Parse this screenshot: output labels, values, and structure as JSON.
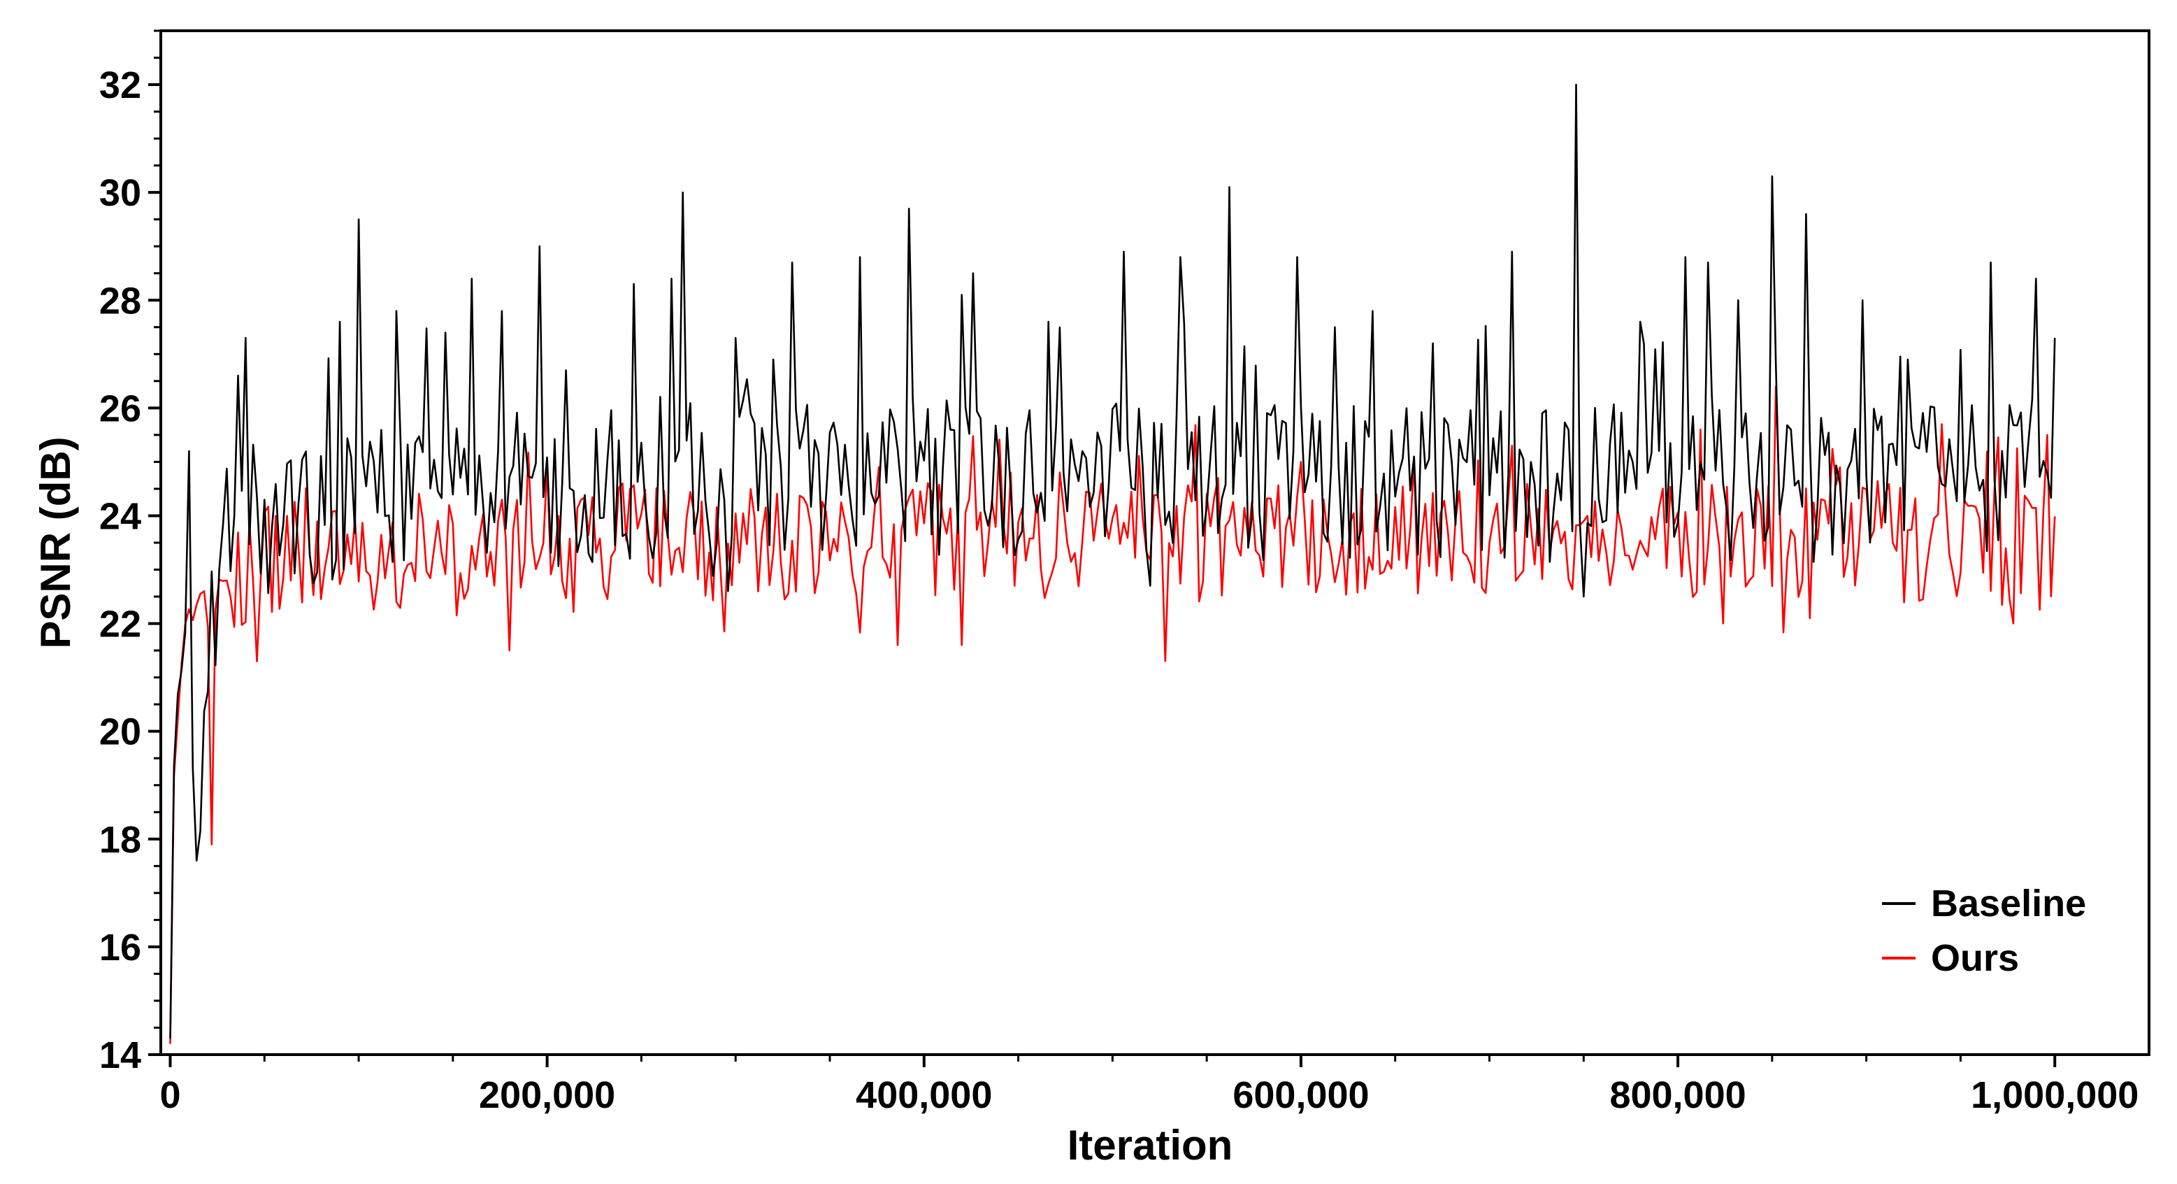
{
  "chart_data": {
    "type": "line",
    "title": "",
    "xlabel": "Iteration",
    "ylabel": "PSNR (dB)",
    "xlim": [
      -5000,
      1050000
    ],
    "ylim": [
      14,
      33
    ],
    "x_ticks": [
      0,
      200000,
      400000,
      600000,
      800000,
      1000000
    ],
    "x_tick_labels": [
      "0",
      "200,000",
      "400,000",
      "600,000",
      "800,000",
      "1,000,000"
    ],
    "y_ticks": [
      14,
      16,
      18,
      20,
      22,
      24,
      26,
      28,
      30,
      32
    ],
    "y_tick_labels": [
      "14",
      "16",
      "18",
      "20",
      "22",
      "24",
      "26",
      "28",
      "30",
      "32"
    ],
    "grid": false,
    "legend_position": "bottom-right",
    "x_range": [
      0,
      1000000
    ],
    "x_step": 2000,
    "series": [
      {
        "name": "Baseline",
        "color": "#000000",
        "anchors": [
          [
            0,
            14.3
          ],
          [
            1500,
            19.0
          ],
          [
            4000,
            20.8
          ],
          [
            8000,
            21.6
          ],
          [
            14000,
            17.6
          ],
          [
            22000,
            22.3
          ],
          [
            30000,
            23.4
          ],
          [
            50000,
            24.0
          ],
          [
            100000,
            24.3
          ],
          [
            200000,
            24.5
          ],
          [
            300000,
            24.7
          ],
          [
            400000,
            24.7
          ],
          [
            500000,
            24.6
          ],
          [
            600000,
            24.6
          ],
          [
            700000,
            24.6
          ],
          [
            800000,
            24.7
          ],
          [
            900000,
            24.6
          ],
          [
            1000000,
            24.8
          ]
        ],
        "amplitude": 1.5,
        "peaks": [
          [
            10000,
            25.2
          ],
          [
            36000,
            26.6
          ],
          [
            40000,
            27.3
          ],
          [
            90000,
            27.6
          ],
          [
            100000,
            29.5
          ],
          [
            120000,
            27.8
          ],
          [
            145000,
            27.4
          ],
          [
            160000,
            28.4
          ],
          [
            175000,
            27.8
          ],
          [
            195000,
            29.0
          ],
          [
            210000,
            26.7
          ],
          [
            245000,
            28.3
          ],
          [
            265000,
            28.4
          ],
          [
            272000,
            30.0
          ],
          [
            300000,
            27.3
          ],
          [
            320000,
            26.9
          ],
          [
            330000,
            28.7
          ],
          [
            365000,
            28.8
          ],
          [
            392000,
            29.7
          ],
          [
            420000,
            28.1
          ],
          [
            425000,
            28.5
          ],
          [
            465000,
            27.6
          ],
          [
            505000,
            28.9
          ],
          [
            535000,
            28.8
          ],
          [
            562000,
            30.1
          ],
          [
            598000,
            28.8
          ],
          [
            618000,
            27.5
          ],
          [
            638000,
            27.8
          ],
          [
            670000,
            27.2
          ],
          [
            712000,
            28.9
          ],
          [
            745000,
            32.0
          ],
          [
            780000,
            27.6
          ],
          [
            803000,
            28.8
          ],
          [
            815000,
            28.7
          ],
          [
            832000,
            28.0
          ],
          [
            850000,
            30.3
          ],
          [
            867000,
            29.6
          ],
          [
            897000,
            28.0
          ],
          [
            922000,
            26.9
          ],
          [
            966000,
            28.7
          ],
          [
            990000,
            28.4
          ],
          [
            1000000,
            27.3
          ]
        ],
        "dips": [
          [
            14000,
            17.6
          ],
          [
            295000,
            22.6
          ],
          [
            520000,
            22.7
          ],
          [
            750000,
            22.5
          ]
        ]
      },
      {
        "name": "Ours",
        "color": "#ff0000",
        "anchors": [
          [
            0,
            14.2
          ],
          [
            1500,
            18.8
          ],
          [
            4000,
            20.3
          ],
          [
            8000,
            21.8
          ],
          [
            15000,
            22.2
          ],
          [
            30000,
            22.6
          ],
          [
            50000,
            23.1
          ],
          [
            100000,
            23.3
          ],
          [
            200000,
            23.4
          ],
          [
            300000,
            23.5
          ],
          [
            400000,
            23.6
          ],
          [
            500000,
            23.5
          ],
          [
            600000,
            23.5
          ],
          [
            700000,
            23.6
          ],
          [
            800000,
            23.6
          ],
          [
            900000,
            23.5
          ],
          [
            1000000,
            23.4
          ]
        ],
        "amplitude": 1.1,
        "peaks": [
          [
            175000,
            24.3
          ],
          [
            240000,
            24.6
          ],
          [
            375000,
            24.9
          ],
          [
            445000,
            24.8
          ],
          [
            555000,
            24.7
          ],
          [
            600000,
            25.0
          ],
          [
            712000,
            25.3
          ],
          [
            812000,
            25.6
          ],
          [
            852000,
            26.4
          ],
          [
            885000,
            24.9
          ],
          [
            940000,
            25.7
          ],
          [
            995000,
            25.5
          ]
        ],
        "dips": [
          [
            22000,
            17.9
          ],
          [
            180000,
            21.5
          ],
          [
            385000,
            21.6
          ],
          [
            420000,
            21.6
          ],
          [
            527000,
            21.3
          ],
          [
            824000,
            22.0
          ],
          [
            870000,
            22.1
          ],
          [
            978000,
            22.0
          ]
        ]
      }
    ]
  }
}
